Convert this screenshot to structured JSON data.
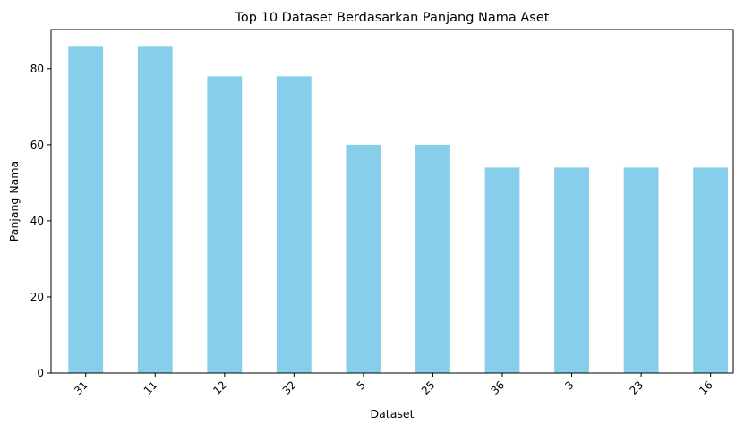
{
  "chart_data": {
    "type": "bar",
    "title": "Top 10 Dataset Berdasarkan Panjang Nama Aset",
    "xlabel": "Dataset",
    "ylabel": "Panjang Nama",
    "categories": [
      "31",
      "11",
      "12",
      "32",
      "5",
      "25",
      "36",
      "3",
      "23",
      "16"
    ],
    "values": [
      86,
      86,
      78,
      78,
      60,
      60,
      54,
      54,
      54,
      54
    ],
    "ylim": [
      0,
      90.3
    ],
    "yticks": [
      0,
      20,
      40,
      60,
      80
    ],
    "grid": false,
    "legend": "none",
    "bar_color": "#87ceeb",
    "x_tick_rotation": 45
  }
}
